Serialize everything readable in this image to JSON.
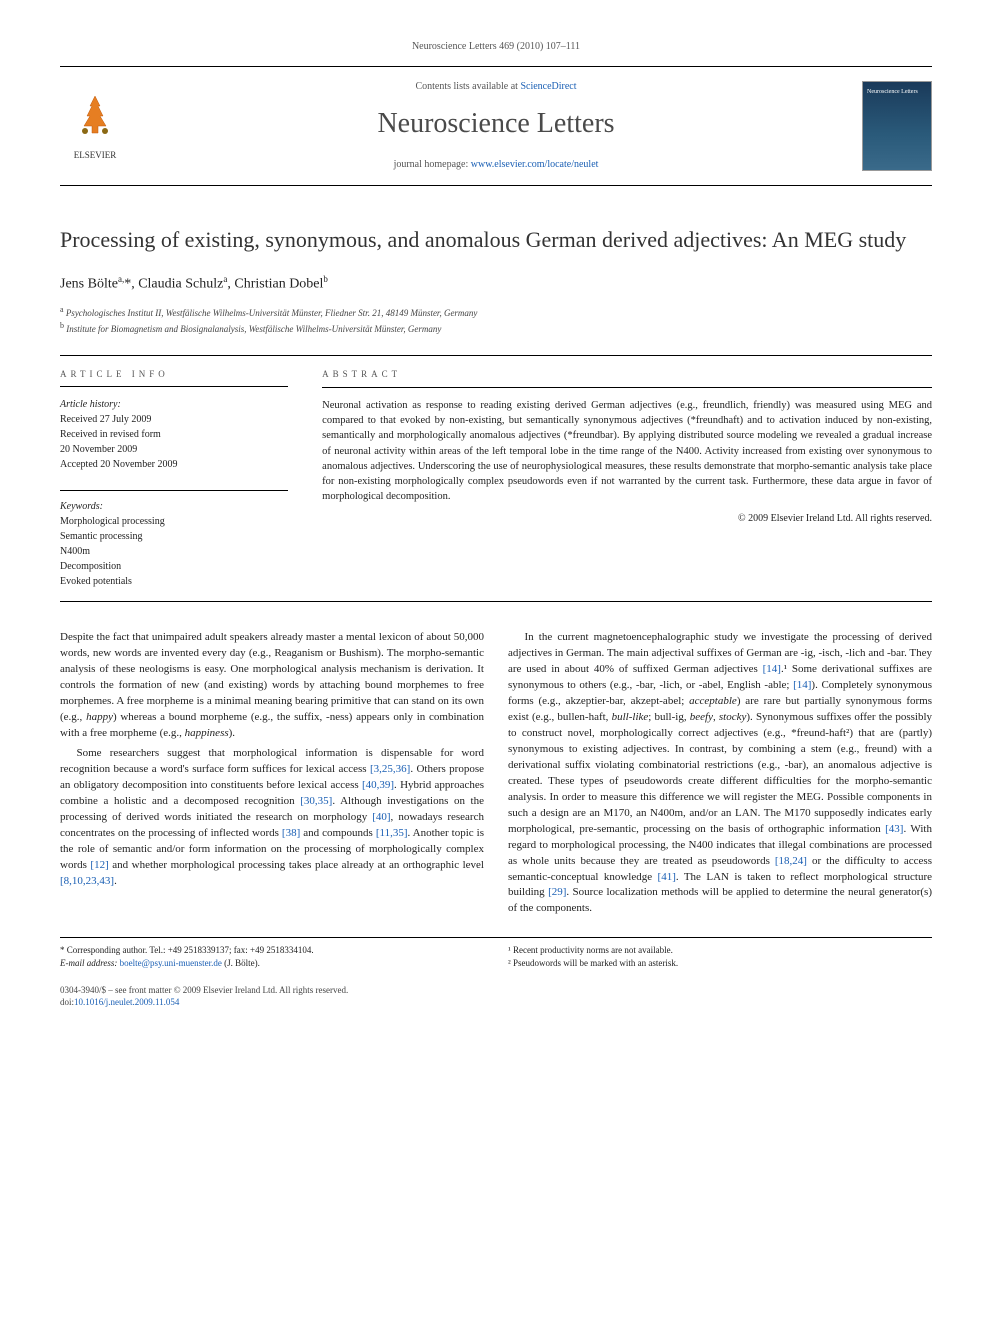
{
  "header": {
    "citation": "Neuroscience Letters 469 (2010) 107–111",
    "contents_prefix": "Contents lists available at ",
    "contents_link": "ScienceDirect",
    "journal_title": "Neuroscience Letters",
    "homepage_prefix": "journal homepage: ",
    "homepage_link": "www.elsevier.com/locate/neulet",
    "publisher": "ELSEVIER",
    "thumb_label": "Neuroscience Letters"
  },
  "article": {
    "title": "Processing of existing, synonymous, and anomalous German derived adjectives: An MEG study",
    "authors_html": "Jens Bölte<sup>a,</sup>*, Claudia Schulz<sup>a</sup>, Christian Dobel<sup>b</sup>",
    "affiliations": [
      {
        "sup": "a",
        "text": "Psychologisches Institut II, Westfälische Wilhelms-Universität Münster, Fliedner Str. 21, 48149 Münster, Germany"
      },
      {
        "sup": "b",
        "text": "Institute for Biomagnetism and Biosignalanalysis, Westfälische Wilhelms-Universität Münster, Germany"
      }
    ]
  },
  "info": {
    "heading": "article info",
    "history_label": "Article history:",
    "history": [
      "Received 27 July 2009",
      "Received in revised form",
      "20 November 2009",
      "Accepted 20 November 2009"
    ],
    "keywords_label": "Keywords:",
    "keywords": [
      "Morphological processing",
      "Semantic processing",
      "N400m",
      "Decomposition",
      "Evoked potentials"
    ]
  },
  "abstract": {
    "heading": "abstract",
    "text": "Neuronal activation as response to reading existing derived German adjectives (e.g., freundlich, friendly) was measured using MEG and compared to that evoked by non-existing, but semantically synonymous adjectives (*freundhaft) and to activation induced by non-existing, semantically and morphologically anomalous adjectives (*freundbar). By applying distributed source modeling we revealed a gradual increase of neuronal activity within areas of the left temporal lobe in the time range of the N400. Activity increased from existing over synonymous to anomalous adjectives. Underscoring the use of neurophysiological measures, these results demonstrate that morpho-semantic analysis take place for non-existing morphologically complex pseudowords even if not warranted by the current task. Furthermore, these data argue in favor of morphological decomposition.",
    "copyright": "© 2009 Elsevier Ireland Ltd. All rights reserved."
  },
  "body": {
    "paragraphs": [
      "Despite the fact that unimpaired adult speakers already master a mental lexicon of about 50,000 words, new words are invented every day (e.g., Reaganism or Bushism). The morpho-semantic analysis of these neologisms is easy. One morphological analysis mechanism is derivation. It controls the formation of new (and existing) words by attaching bound morphemes to free morphemes. A free morpheme is a minimal meaning bearing primitive that can stand on its own (e.g., happy) whereas a bound morpheme (e.g., the suffix, -ness) appears only in combination with a free morpheme (e.g., happiness).",
      "Some researchers suggest that morphological information is dispensable for word recognition because a word's surface form suffices for lexical access [3,25,36]. Others propose an obligatory decomposition into constituents before lexical access [40,39]. Hybrid approaches combine a holistic and a decomposed recognition [30,35]. Although investigations on the processing of derived words initiated the research on morphology [40], nowadays research concentrates on the processing of inflected words [38] and compounds [11,35]. Another topic is the role of semantic and/or form information on the processing of morphologically complex words [12] and whether morphological processing takes place already at an orthographic level [8,10,23,43].",
      "In the current magnetoencephalographic study we investigate the processing of derived adjectives in German. The main adjectival suffixes of German are -ig, -isch, -lich and -bar. They are used in about 40% of suffixed German adjectives [14].¹ Some derivational suffixes are synonymous to others (e.g., -bar, -lich, or -abel, English -able; [14]). Completely synonymous forms (e.g., akzeptier-bar, akzept-abel; acceptable) are rare but partially synonymous forms exist (e.g., bullen-haft, bull-like; bull-ig, beefy, stocky). Synonymous suffixes offer the possibly to construct novel, morphologically correct adjectives (e.g., *freund-haft²) that are (partly) synonymous to existing adjectives. In contrast, by combining a stem (e.g., freund) with a derivational suffix violating combinatorial restrictions (e.g., -bar), an anomalous adjective is created. These types of pseudowords create different difficulties for the morpho-semantic analysis. In order to measure this difference we will register the MEG. Possible components in such a design are an M170, an N400m, and/or an LAN. The M170 supposedly indicates early morphological, pre-semantic, processing on the basis of orthographic information [43]. With regard to morphological processing, the N400 indicates that illegal combinations are processed as whole units because they are treated as pseudowords [18,24] or the difficulty to access semantic-conceptual knowledge [41]. The LAN is taken to reflect morphological structure building [29]. Source localization methods will be applied to determine the neural generator(s) of the components."
    ]
  },
  "footnotes": {
    "left": [
      "* Corresponding author. Tel.: +49 2518339137; fax: +49 2518334104.",
      "E-mail address: boelte@psy.uni-muenster.de (J. Bölte)."
    ],
    "right": [
      "¹ Recent productivity norms are not available.",
      "² Pseudowords will be marked with an asterisk."
    ]
  },
  "bottom": {
    "issn_line": "0304-3940/$ – see front matter © 2009 Elsevier Ireland Ltd. All rights reserved.",
    "doi_label": "doi:",
    "doi": "10.1016/j.neulet.2009.11.054"
  },
  "colors": {
    "link": "#1a5fb4",
    "text": "#222222",
    "muted": "#555555",
    "rule": "#000000"
  }
}
